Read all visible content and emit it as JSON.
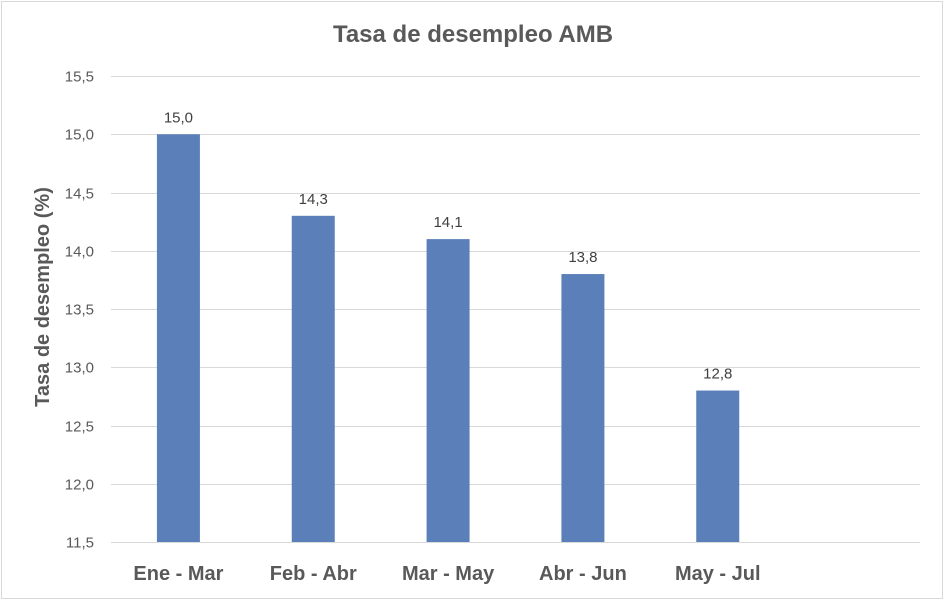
{
  "chart_data": {
    "type": "bar",
    "title": "Tasa de desempleo AMB",
    "xlabel": "",
    "ylabel": "Tasa de desempleo (%)",
    "categories": [
      "Ene - Mar",
      "Feb - Abr",
      "Mar - May",
      "Abr - Jun",
      "May - Jul"
    ],
    "values": [
      15.0,
      14.3,
      14.1,
      13.8,
      12.8
    ],
    "data_labels": [
      "15,0",
      "14,3",
      "14,1",
      "13,8",
      "12,8"
    ],
    "ylim": [
      11.5,
      15.5
    ],
    "yticks": [
      11.5,
      12.0,
      12.5,
      13.0,
      13.5,
      14.0,
      14.5,
      15.0,
      15.5
    ],
    "ytick_labels": [
      "11,5",
      "12,0",
      "12,5",
      "13,0",
      "13,5",
      "14,0",
      "14,5",
      "15,0",
      "15,5"
    ],
    "grid": true,
    "legend": "none",
    "bar_color": "#5b7fb8"
  }
}
